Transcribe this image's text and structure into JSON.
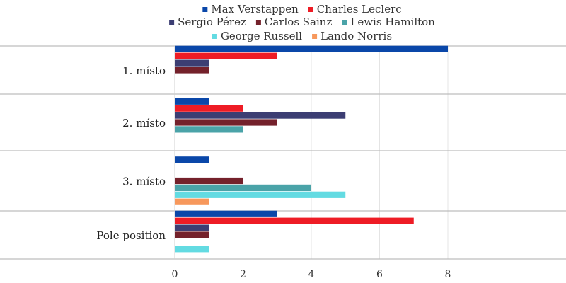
{
  "chart_data": {
    "type": "bar",
    "orientation": "horizontal",
    "categories": [
      "1. místo",
      "2. místo",
      "3. místo",
      "Pole position"
    ],
    "series": [
      {
        "name": "Max Verstappen",
        "color": "#0a47a9",
        "values": [
          8,
          1,
          1,
          3
        ]
      },
      {
        "name": "Charles Leclerc",
        "color": "#ee1c25",
        "values": [
          3,
          2,
          0,
          7
        ]
      },
      {
        "name": "Sergio Pérez",
        "color": "#3c3e73",
        "values": [
          1,
          5,
          0,
          1
        ]
      },
      {
        "name": "Carlos Sainz",
        "color": "#74212b",
        "values": [
          1,
          3,
          2,
          1
        ]
      },
      {
        "name": "Lewis Hamilton",
        "color": "#4aa3a8",
        "values": [
          0,
          2,
          4,
          0
        ]
      },
      {
        "name": "George Russell",
        "color": "#63dbe2",
        "values": [
          0,
          0,
          5,
          1
        ]
      },
      {
        "name": "Lando Norris",
        "color": "#f7985c",
        "values": [
          0,
          0,
          1,
          0
        ]
      }
    ],
    "xticks": [
      "0",
      "2",
      "4",
      "6",
      "8"
    ],
    "xlim": [
      0,
      8
    ],
    "title": "",
    "xlabel": "",
    "ylabel": "",
    "legend_position": "top"
  }
}
